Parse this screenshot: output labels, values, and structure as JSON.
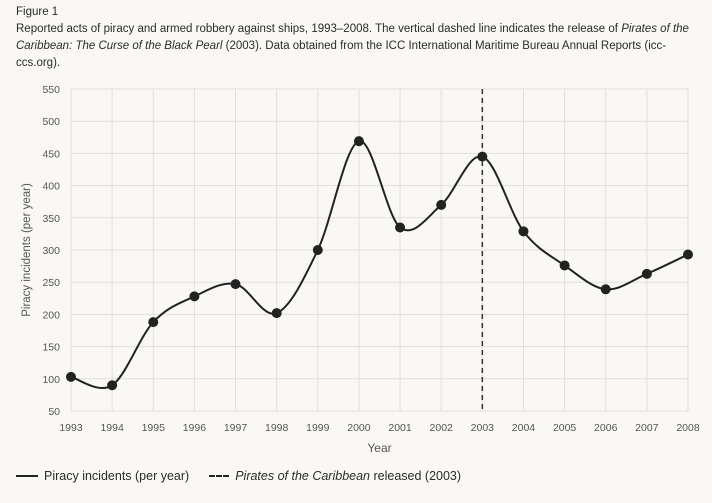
{
  "caption": {
    "figure_label": "Figure 1",
    "text_1": "Reported acts of piracy and armed robbery against ships, 1993–2008. The vertical dashed line indicates the release of ",
    "text_italic": "Pirates of the Caribbean: The Curse of the Black Pearl",
    "text_2": " (2003). Data obtained from the ICC International Maritime Bureau Annual Reports (icc-ccs.org)."
  },
  "chart_data": {
    "type": "line",
    "xlabel": "Year",
    "ylabel": "Piracy incidents (per year)",
    "x": [
      1993,
      1994,
      1995,
      1996,
      1997,
      1998,
      1999,
      2000,
      2001,
      2002,
      2003,
      2004,
      2005,
      2006,
      2007,
      2008
    ],
    "series": [
      {
        "name": "Piracy incidents (per year)",
        "values": [
          103,
          90,
          188,
          228,
          247,
          202,
          300,
          469,
          335,
          370,
          445,
          329,
          276,
          239,
          263,
          293
        ]
      }
    ],
    "xlim": [
      1993,
      2008
    ],
    "ylim": [
      50,
      550
    ],
    "yticks": [
      50,
      100,
      150,
      200,
      250,
      300,
      350,
      400,
      450,
      500,
      550
    ],
    "xticks": [
      1993,
      1994,
      1995,
      1996,
      1997,
      1998,
      1999,
      2000,
      2001,
      2002,
      2003,
      2004,
      2005,
      2006,
      2007,
      2008
    ],
    "grid": true,
    "smooth": true,
    "annotation": {
      "x": 2003,
      "style": "dashed vertical line"
    },
    "legend": {
      "placement": "bottom-left",
      "entry_1": "Piracy incidents (per year)",
      "entry_2_italic": "Pirates of the Caribbean",
      "entry_2_rest": " released (2003)"
    },
    "colors": {
      "line": "#222222",
      "grid": "#e2e0dc",
      "background": "#f9f8f5"
    }
  }
}
